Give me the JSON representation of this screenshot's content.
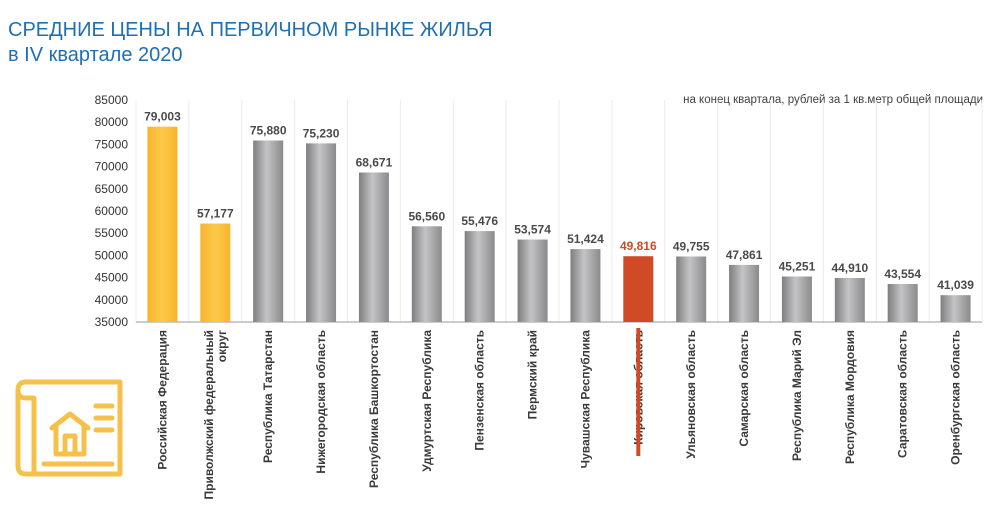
{
  "header": {
    "title_line1": "СРЕДНИЕ ЦЕНЫ НА ПЕРВИЧНОМ РЫНКЕ ЖИЛЬЯ",
    "title_line2": "в IV квартале 2020",
    "note": "на конец квартала, рублей за 1 кв.метр общей площади"
  },
  "colors": {
    "title": "#1f6fb5",
    "bar_highlight": "#fbbe3a",
    "bar_default": "#9a9a9c",
    "bar_accent": "#cf4a25",
    "label_accent": "#cf4a25",
    "label_default": "#4a4a4a",
    "icon": "#f4c14a"
  },
  "decor": {
    "icon": "house-blueprint-icon"
  },
  "chart_data": {
    "type": "bar",
    "ylim": [
      35000,
      85000
    ],
    "yticks": [
      "35000",
      "40000",
      "45000",
      "50000",
      "55000",
      "60000",
      "65000",
      "70000",
      "75000",
      "80000",
      "85000"
    ],
    "categories": [
      "Российская Федерация",
      "Приволжский федеральный округ",
      "Республика Татарстан",
      "Нижегородская область",
      "Республика Башкортостан",
      "Удмуртская Республика",
      "Пензенская область",
      "Пермский край",
      "Чувашская Республика",
      "Кировская область",
      "Ульяновская область",
      "Самарская область",
      "Республика Марий Эл",
      "Республика Мордовия",
      "Саратовская область",
      "Оренбургская область"
    ],
    "category_lines": [
      [
        "Российская Федерация"
      ],
      [
        "Приволжский федеральный",
        "округ"
      ],
      [
        "Республика Татарстан"
      ],
      [
        "Нижегородская область"
      ],
      [
        "Республика Башкортостан"
      ],
      [
        "Удмуртская Республика"
      ],
      [
        "Пензенская область"
      ],
      [
        "Пермский край"
      ],
      [
        "Чувашская Республика"
      ],
      [
        "Кировская область"
      ],
      [
        "Ульяновская область"
      ],
      [
        "Самарская область"
      ],
      [
        "Республика Марий Эл"
      ],
      [
        "Республика Мордовия"
      ],
      [
        "Саратовская область"
      ],
      [
        "Оренбургская область"
      ]
    ],
    "values": [
      79003,
      57177,
      75880,
      75230,
      68671,
      56560,
      55476,
      53574,
      51424,
      49816,
      49755,
      47861,
      45251,
      44910,
      43554,
      41039
    ],
    "value_labels": [
      "79,003",
      "57,177",
      "75,880",
      "75,230",
      "68,671",
      "56,560",
      "55,476",
      "53,574",
      "51,424",
      "49,816",
      "49,755",
      "47,861",
      "45,251",
      "44,910",
      "43,554",
      "41,039"
    ],
    "bar_kind": [
      "highlight",
      "highlight",
      "default",
      "default",
      "default",
      "default",
      "default",
      "default",
      "default",
      "accent",
      "default",
      "default",
      "default",
      "default",
      "default",
      "default"
    ]
  }
}
